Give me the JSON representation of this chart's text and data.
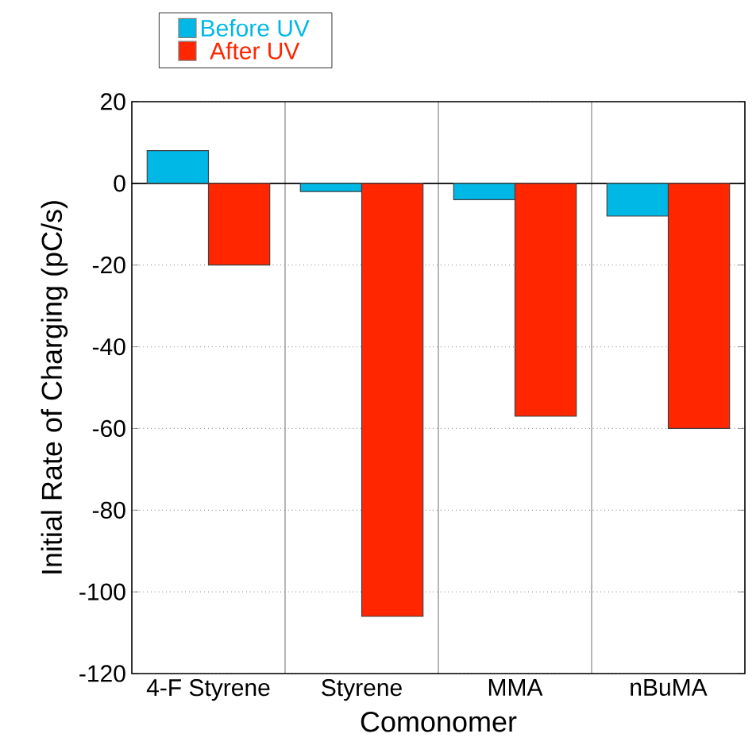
{
  "chart_data": {
    "type": "bar",
    "xlabel": "Comonomer",
    "ylabel": "Initial Rate of Charging (pC/s)",
    "categories": [
      "4-F Styrene",
      "Styrene",
      "MMA",
      "nBuMA"
    ],
    "series": [
      {
        "name": "Before UV",
        "color": "#00b8e6",
        "values": [
          8,
          -2,
          -4,
          -8
        ]
      },
      {
        "name": "After UV",
        "color": "#ff2600",
        "values": [
          -20,
          -106,
          -57,
          -60
        ]
      }
    ],
    "ylim": [
      -120,
      20
    ],
    "yticks": [
      -120,
      -100,
      -80,
      -60,
      -40,
      -20,
      0,
      20
    ],
    "grid": true,
    "legend": "top left"
  }
}
